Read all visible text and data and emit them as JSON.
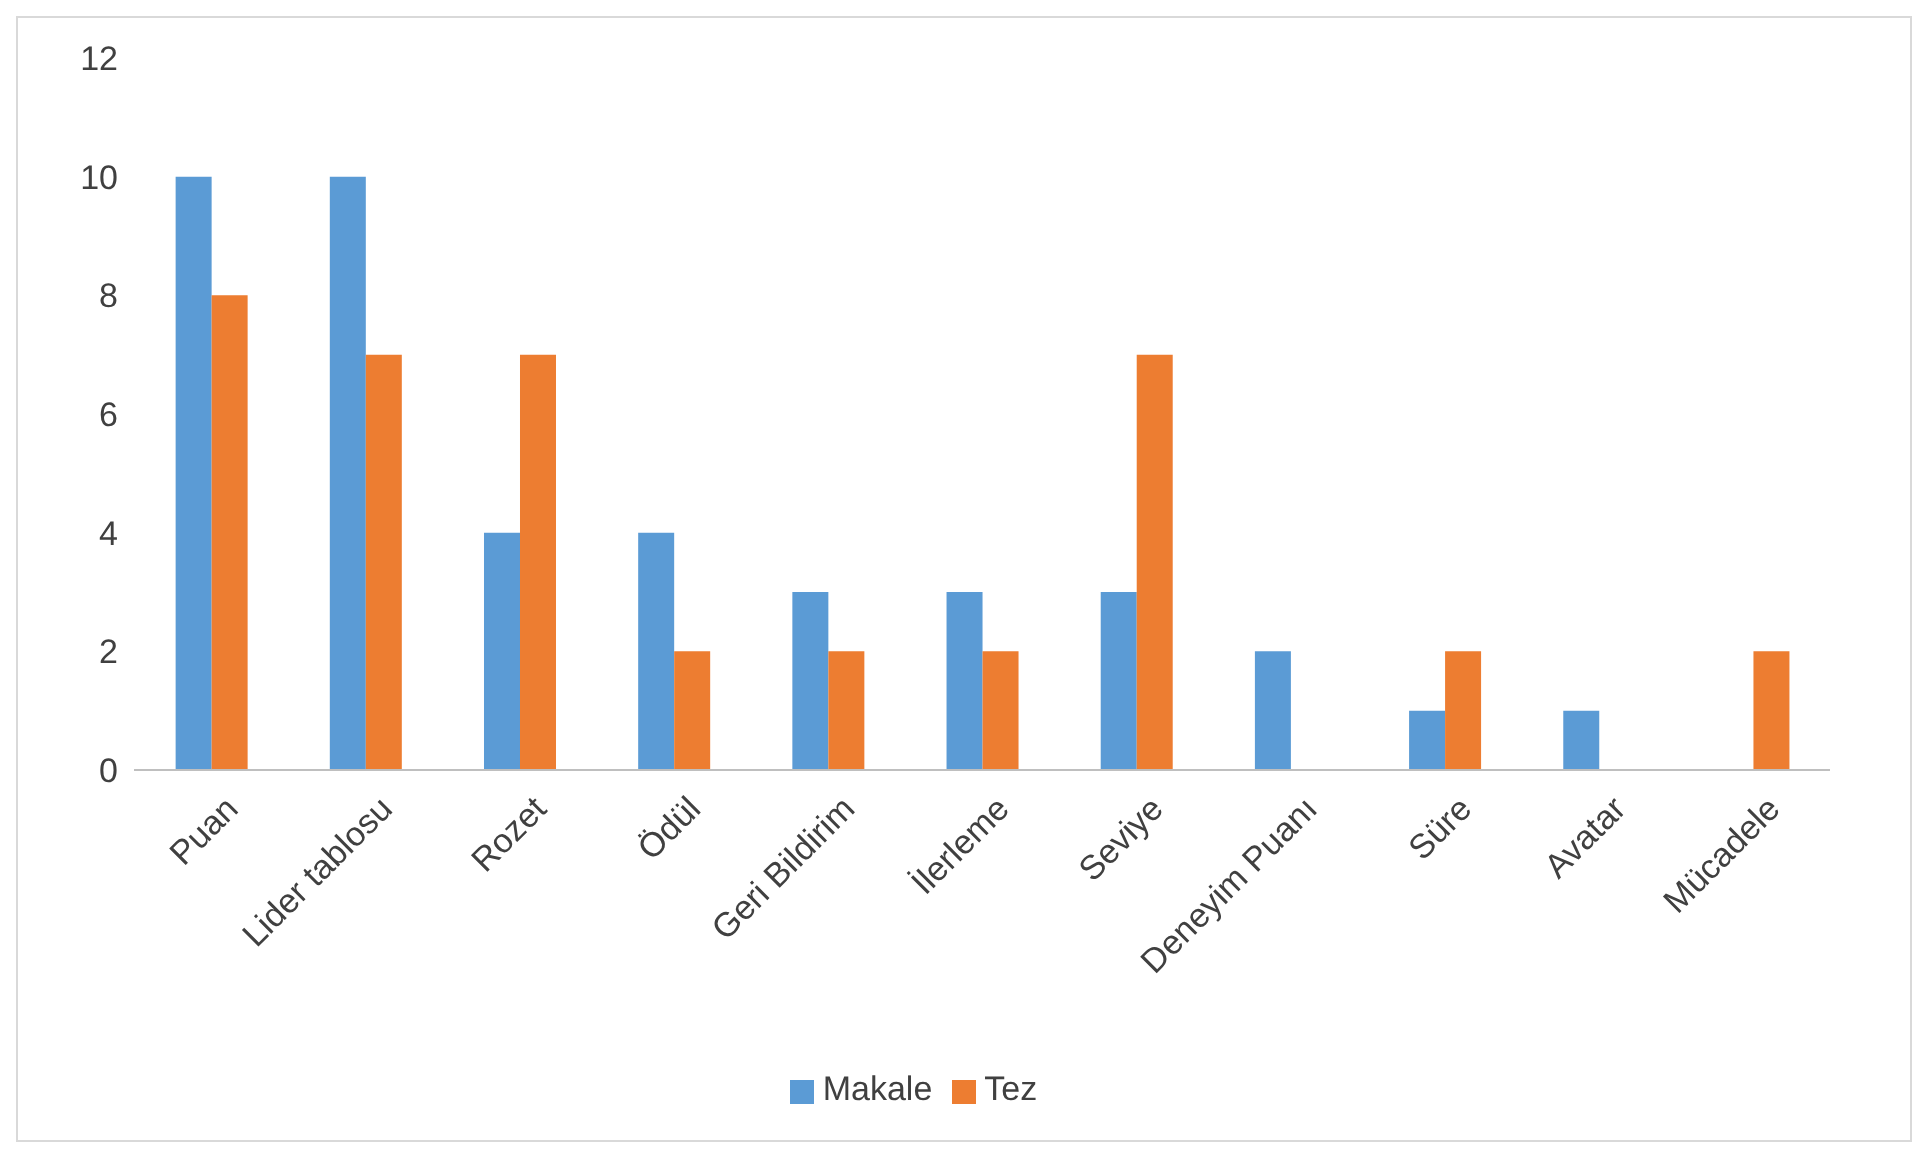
{
  "chart_data": {
    "type": "bar",
    "categories": [
      "Puan",
      "Lider tablosu",
      "Rozet",
      "Ödül",
      "Geri Bildirim",
      "İlerleme",
      "Seviye",
      "Deneyim Puanı",
      "Süre",
      "Avatar",
      "Mücadele"
    ],
    "series": [
      {
        "name": "Makale",
        "color": "#5b9bd5",
        "values": [
          10,
          10,
          4,
          4,
          3,
          3,
          3,
          2,
          1,
          1,
          0
        ]
      },
      {
        "name": "Tez",
        "color": "#ed7d31",
        "values": [
          8,
          7,
          7,
          2,
          2,
          2,
          7,
          0,
          2,
          0,
          2
        ]
      }
    ],
    "ylim": [
      0,
      12
    ],
    "yticks": [
      0,
      2,
      4,
      6,
      8,
      10,
      12
    ],
    "grid": false,
    "legend": "bottom"
  }
}
